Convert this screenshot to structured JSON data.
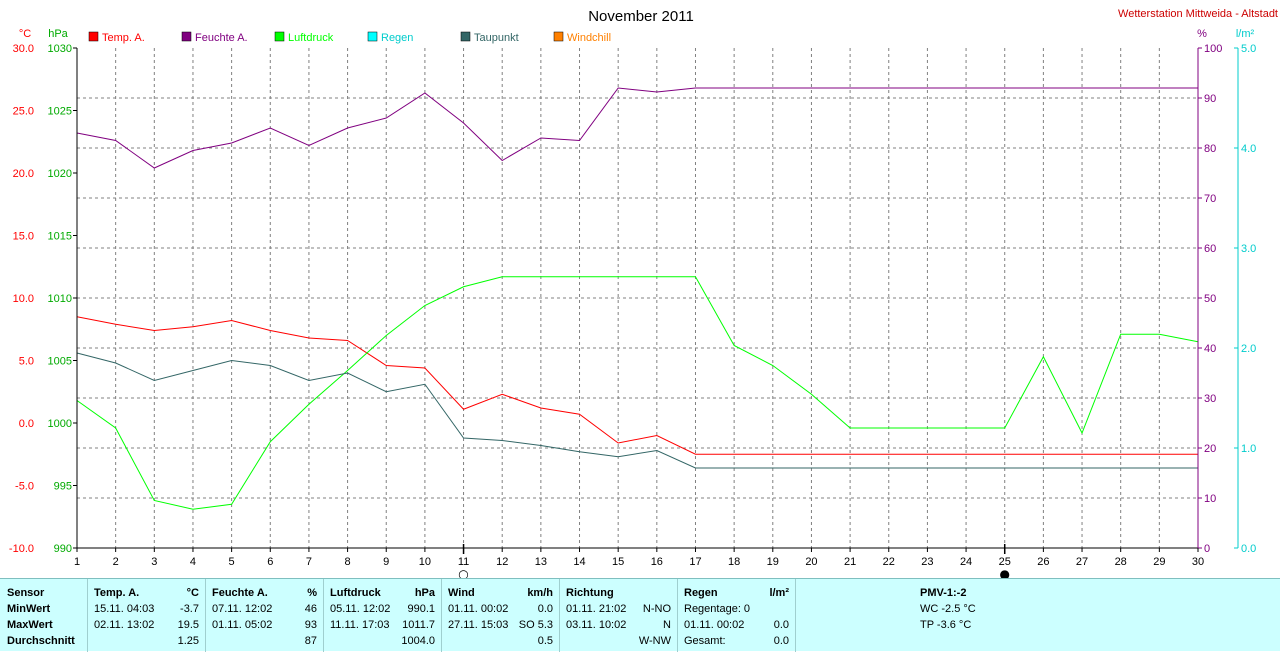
{
  "title": "November 2011",
  "station": "Wetterstation Mittweida - Altstadt",
  "colors": {
    "temp": "#ff0000",
    "humidity": "#800080",
    "pressure": "#00ff00",
    "rain": "#00ffff",
    "dewpoint": "#336666",
    "windchill": "#ff8000",
    "grid": "#808080",
    "axis_temp": "#ff0000",
    "axis_pressure": "#00aa00",
    "axis_humidity": "#800080",
    "axis_rain": "#00cccc",
    "panel": "#ccffff"
  },
  "legend": [
    {
      "label": "Temp. A.",
      "color": "#ff0000"
    },
    {
      "label": "Feuchte A.",
      "color": "#800080"
    },
    {
      "label": "Luftdruck",
      "color": "#00ff00"
    },
    {
      "label": "Regen",
      "color": "#00ffff"
    },
    {
      "label": "Taupunkt",
      "color": "#336666"
    },
    {
      "label": "Windchill",
      "color": "#ff8000"
    }
  ],
  "chart_data": {
    "type": "line",
    "x": [
      1,
      2,
      3,
      4,
      5,
      6,
      7,
      8,
      9,
      10,
      11,
      12,
      13,
      14,
      15,
      16,
      17,
      18,
      19,
      20,
      21,
      22,
      23,
      24,
      25,
      26,
      27,
      28,
      29,
      30
    ],
    "axes": {
      "temp": {
        "unit": "°C",
        "range": [
          -10,
          30
        ],
        "ticks": [
          "30.0",
          "25.0",
          "20.0",
          "15.0",
          "10.0",
          "5.0",
          "0.0",
          "-5.0",
          "-10.0"
        ]
      },
      "pressure": {
        "unit": "hPa",
        "range": [
          990,
          1030
        ],
        "ticks": [
          "1030",
          "1025",
          "1020",
          "1015",
          "1010",
          "1005",
          "1000",
          "995",
          "990"
        ]
      },
      "humidity": {
        "unit": "%",
        "range": [
          0,
          100
        ],
        "ticks": [
          "100",
          "90",
          "80",
          "70",
          "60",
          "50",
          "40",
          "30",
          "20",
          "10",
          "0"
        ]
      },
      "rain": {
        "unit": "l/m²",
        "range": [
          0,
          5
        ],
        "ticks": [
          "5.0",
          "4.0",
          "3.0",
          "2.0",
          "1.0",
          "0.0"
        ]
      }
    },
    "grid": true,
    "legend_position": "top-left",
    "series": [
      {
        "name": "Temp. A.",
        "axis": "temp",
        "color": "#ff0000",
        "values": [
          8.5,
          7.9,
          7.4,
          7.7,
          8.2,
          7.4,
          6.8,
          6.6,
          4.6,
          4.4,
          1.1,
          2.3,
          1.2,
          0.7,
          -1.6,
          -1.0,
          -2.5,
          -2.5,
          -2.5,
          -2.5,
          -2.5,
          -2.5,
          -2.5,
          -2.5,
          -2.5,
          -2.5,
          -2.5,
          -2.5,
          -2.5,
          -2.5
        ]
      },
      {
        "name": "Feuchte A.",
        "axis": "humidity",
        "color": "#800080",
        "values": [
          83,
          81.5,
          76,
          79.5,
          81,
          84,
          80.5,
          84,
          86,
          91,
          85,
          77.5,
          82,
          81.5,
          92,
          91.2,
          92,
          92,
          92,
          92,
          92,
          92,
          92,
          92,
          92,
          92,
          92,
          92,
          92,
          92
        ]
      },
      {
        "name": "Luftdruck",
        "axis": "pressure",
        "color": "#00ff00",
        "values": [
          1001.8,
          999.6,
          993.8,
          993.1,
          993.5,
          998.5,
          1001.5,
          1004.2,
          1007.0,
          1009.4,
          1010.9,
          1011.7,
          1011.7,
          1011.7,
          1011.7,
          1011.7,
          1011.7,
          1006.2,
          1004.6,
          1002.3,
          999.6,
          999.6,
          999.6,
          999.6,
          999.6,
          1005.3,
          999.2,
          1007.1,
          1007.1,
          1006.5
        ]
      },
      {
        "name": "Taupunkt",
        "axis": "temp",
        "color": "#336666",
        "values": [
          5.6,
          4.8,
          3.4,
          4.2,
          5.0,
          4.6,
          3.4,
          4.0,
          2.5,
          3.1,
          -1.2,
          -1.4,
          -1.8,
          -2.3,
          -2.7,
          -2.2,
          -3.6,
          -3.6,
          -3.6,
          -3.6,
          -3.6,
          -3.6,
          -3.6,
          -3.6,
          -3.6,
          -3.6,
          -3.6,
          -3.6,
          -3.6,
          -3.6
        ]
      }
    ],
    "moon_markers": [
      {
        "day": 11,
        "symbol": "○"
      },
      {
        "day": 25,
        "symbol": "●"
      }
    ]
  },
  "stats": {
    "row_labels": [
      "Sensor",
      "MinWert",
      "MaxWert",
      "Durchschnitt"
    ],
    "temp": {
      "title": "Temp. A.",
      "unit": "°C",
      "min_date": "15.11.  04:03",
      "min_val": "-3.7",
      "max_date": "02.11.  13:02",
      "max_val": "19.5",
      "avg": "1.25"
    },
    "humidity": {
      "title": "Feuchte A.",
      "unit": "%",
      "min_date": "07.11.  12:02",
      "min_val": "46",
      "max_date": "01.11.  05:02",
      "max_val": "93",
      "avg": "87"
    },
    "pressure": {
      "title": "Luftdruck",
      "unit": "hPa",
      "min_date": "05.11.  12:02",
      "min_val": "990.1",
      "max_date": "11.11.  17:03",
      "max_val": "1011.7",
      "avg": "1004.0"
    },
    "wind": {
      "title": "Wind",
      "unit": "km/h",
      "min_date": "01.11.  00:02",
      "min_val": "0.0",
      "max_date": "27.11.  15:03",
      "max_val": "SO 5.3",
      "avg": "0.5"
    },
    "direction": {
      "title": "Richtung",
      "min_date": "01.11.  21:02",
      "min_val": "N-NO",
      "max_date": "03.11.  10:02",
      "max_val": "N",
      "avg": "W-NW"
    },
    "rain": {
      "title": "Regen",
      "unit": "l/m²",
      "days": "Regentage: 0",
      "max_date": "01.11.  00:02",
      "max_val": "0.0",
      "total_label": "Gesamt:",
      "total_val": "0.0"
    },
    "pmv": {
      "title": "PMV-1:-2",
      "wc": "WC -2.5 °C",
      "tp": "TP -3.6 °C"
    }
  }
}
